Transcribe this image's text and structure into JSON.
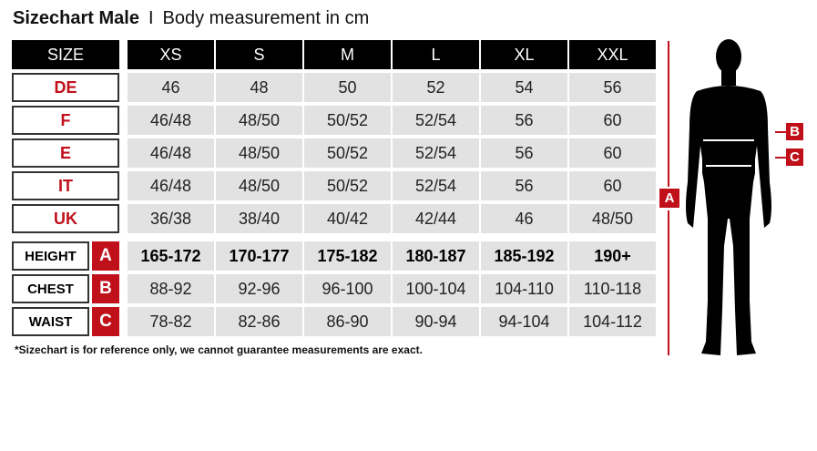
{
  "title": {
    "bold": "Sizechart Male",
    "separator": "I",
    "subtitle": "Body measurement in cm"
  },
  "header": {
    "label": "SIZE",
    "sizes": [
      "XS",
      "S",
      "M",
      "L",
      "XL",
      "XXL"
    ]
  },
  "size_rows": [
    {
      "label": "DE",
      "values": [
        "46",
        "48",
        "50",
        "52",
        "54",
        "56"
      ]
    },
    {
      "label": "F",
      "values": [
        "46/48",
        "48/50",
        "50/52",
        "52/54",
        "56",
        "60"
      ]
    },
    {
      "label": "E",
      "values": [
        "46/48",
        "48/50",
        "50/52",
        "52/54",
        "56",
        "60"
      ]
    },
    {
      "label": "IT",
      "values": [
        "46/48",
        "48/50",
        "50/52",
        "52/54",
        "56",
        "60"
      ]
    },
    {
      "label": "UK",
      "values": [
        "36/38",
        "38/40",
        "40/42",
        "42/44",
        "46",
        "48/50"
      ]
    }
  ],
  "measure_rows": [
    {
      "label": "HEIGHT",
      "letter": "A",
      "values": [
        "165-172",
        "170-177",
        "175-182",
        "180-187",
        "185-192",
        "190+"
      ]
    },
    {
      "label": "CHEST",
      "letter": "B",
      "values": [
        "88-92",
        "92-96",
        "96-100",
        "100-104",
        "104-110",
        "110-118"
      ]
    },
    {
      "label": "WAIST",
      "letter": "C",
      "values": [
        "78-82",
        "82-86",
        "86-90",
        "90-94",
        "94-104",
        "104-112"
      ]
    }
  ],
  "figure": {
    "markers": [
      "A",
      "B",
      "C"
    ]
  },
  "note": "*Sizechart is for reference only, we cannot guarantee measurements are exact.",
  "colors": {
    "accent": "#c0111b",
    "header_bg": "#000000",
    "cell_bg": "#e2e2e2"
  }
}
